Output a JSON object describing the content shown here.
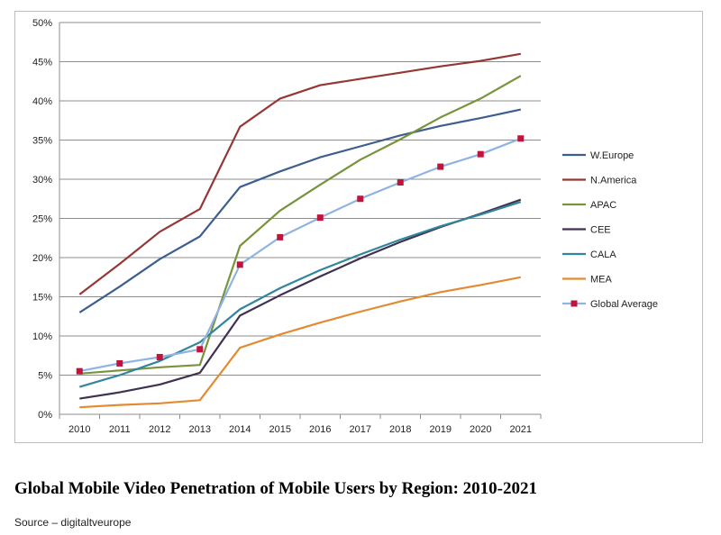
{
  "caption": "Global Mobile Video Penetration of Mobile Users by Region: 2010-2021",
  "source": "Source – digitaltveurope",
  "chart_data": {
    "type": "line",
    "title": "",
    "xlabel": "",
    "ylabel": "",
    "ylim": [
      0,
      50
    ],
    "ytick_format": "percent",
    "yticks": [
      "0%",
      "5%",
      "10%",
      "15%",
      "20%",
      "25%",
      "30%",
      "35%",
      "40%",
      "45%",
      "50%"
    ],
    "categories": [
      "2010",
      "2011",
      "2012",
      "2013",
      "2014",
      "2015",
      "2016",
      "2017",
      "2018",
      "2019",
      "2020",
      "2021"
    ],
    "grid": "horizontal",
    "legend": "right",
    "series": [
      {
        "name": "W.Europe",
        "color": "#3d5f8f",
        "marker": "none",
        "values": [
          13.0,
          16.3,
          19.8,
          22.7,
          29.0,
          31.0,
          32.8,
          34.2,
          35.6,
          36.8,
          37.8,
          38.9
        ]
      },
      {
        "name": "N.America",
        "color": "#953735",
        "marker": "none",
        "values": [
          15.3,
          19.2,
          23.3,
          26.2,
          36.7,
          40.3,
          42.0,
          42.8,
          43.6,
          44.4,
          45.1,
          46.0
        ]
      },
      {
        "name": "APAC",
        "color": "#77933c",
        "marker": "none",
        "values": [
          5.2,
          5.6,
          6.0,
          6.3,
          21.5,
          26.0,
          29.3,
          32.5,
          35.1,
          37.9,
          40.3,
          43.2
        ]
      },
      {
        "name": "CEE",
        "color": "#403151",
        "marker": "none",
        "values": [
          2.0,
          2.8,
          3.8,
          5.3,
          12.6,
          15.2,
          17.6,
          19.9,
          22.0,
          23.9,
          25.6,
          27.4
        ]
      },
      {
        "name": "CALA",
        "color": "#31859c",
        "marker": "none",
        "values": [
          3.5,
          5.0,
          6.8,
          9.2,
          13.4,
          16.1,
          18.4,
          20.4,
          22.3,
          24.0,
          25.5,
          27.1
        ]
      },
      {
        "name": "MEA",
        "color": "#e38b33",
        "marker": "none",
        "values": [
          0.9,
          1.2,
          1.4,
          1.8,
          8.5,
          10.2,
          11.7,
          13.1,
          14.4,
          15.6,
          16.5,
          17.5
        ]
      },
      {
        "name": "Global Average",
        "color": "#8eb4e3",
        "marker": "square",
        "marker_color": "#c0143c",
        "values": [
          5.5,
          6.5,
          7.3,
          8.3,
          19.1,
          22.6,
          25.1,
          27.5,
          29.6,
          31.6,
          33.2,
          35.2
        ]
      }
    ]
  }
}
